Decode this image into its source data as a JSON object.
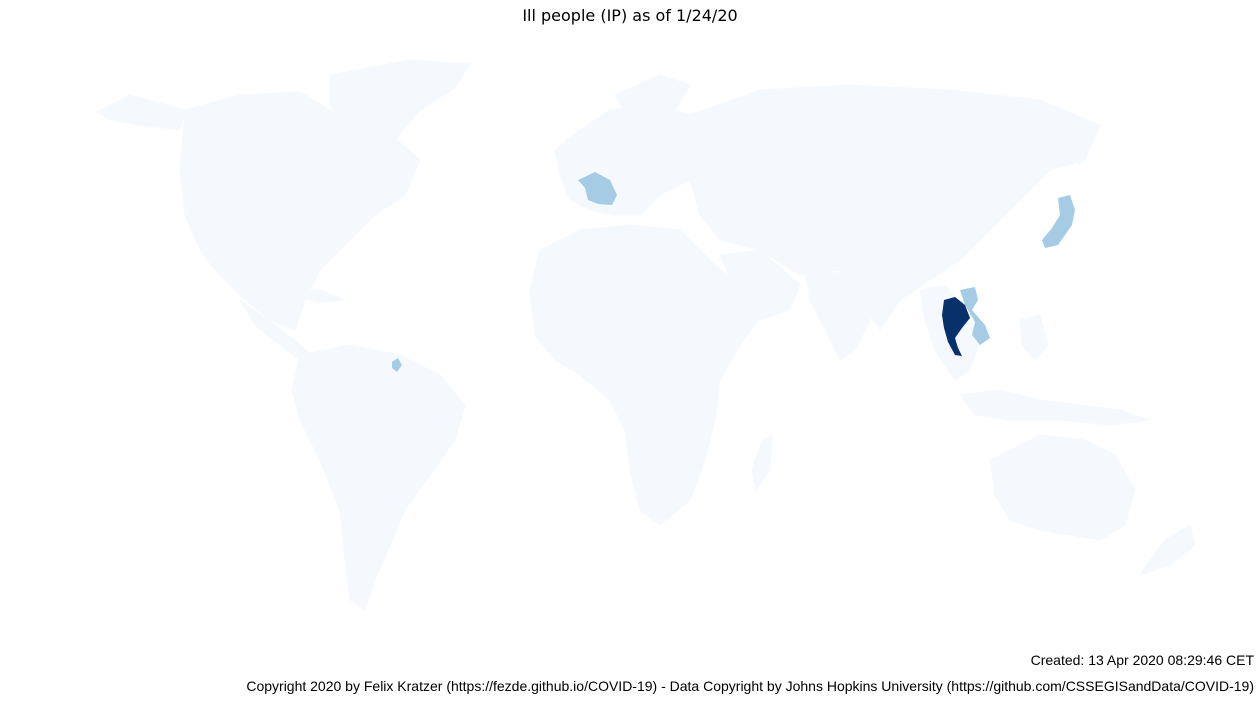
{
  "title": "Ill people (IP) as of 1/24/20",
  "footer": {
    "created": "Created: 13 Apr 2020 08:29:46 CET",
    "copyright": "Copyright 2020 by Felix Kratzer (https://fezde.github.io/COVID-19) - Data Copyright by Johns Hopkins University (https://github.com/CSSEGISandData/COVID-19)"
  },
  "map": {
    "type": "choropleth",
    "metric": "Ill people (IP)",
    "date": "1/24/20",
    "colors": {
      "none": "#f5f9fe",
      "low": "#a5cce4",
      "high": "#08306b"
    },
    "highlighted_regions": [
      {
        "region": "Thailand",
        "level": "high"
      },
      {
        "region": "France",
        "level": "low"
      },
      {
        "region": "Japan",
        "level": "low"
      },
      {
        "region": "Vietnam",
        "level": "low"
      },
      {
        "region": "French Guiana",
        "level": "low"
      }
    ]
  }
}
